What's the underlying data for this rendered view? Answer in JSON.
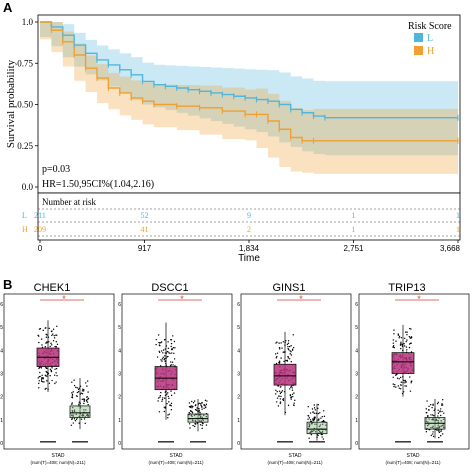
{
  "panels": {
    "a_label": "A",
    "b_label": "B"
  },
  "km": {
    "legend_title": "Risk Score",
    "legend": [
      {
        "name": "L",
        "color": "#4fb7db"
      },
      {
        "name": "H",
        "color": "#f0a030"
      }
    ],
    "ylabel": "Survival probability",
    "xlabel": "Time",
    "yticks": [
      "0.0",
      "0.25",
      "0.50",
      "0.75",
      "1.0"
    ],
    "xticks": [
      "0",
      "917",
      "1,834",
      "2,751",
      "3,668"
    ],
    "pvalue": "p=0.03",
    "hr": "HR=1.50,95CI%(1.04,2.16)",
    "risk_table_title": "Number at risk",
    "risk_rows": [
      {
        "label": "L",
        "values": [
          "211",
          "52",
          "9",
          "1",
          "1"
        ]
      },
      {
        "label": "H",
        "values": [
          "209",
          "41",
          "2",
          "1",
          "1"
        ]
      }
    ]
  },
  "chart_data": [
    {
      "type": "line",
      "title": "",
      "xlabel": "Time",
      "ylabel": "Survival probability",
      "xlim": [
        0,
        3668
      ],
      "ylim": [
        0,
        1
      ],
      "grid": false,
      "legend": "top-right",
      "series": [
        {
          "name": "L",
          "color": "#4fb7db",
          "x": [
            0,
            100,
            200,
            300,
            400,
            500,
            600,
            700,
            800,
            900,
            1000,
            1100,
            1200,
            1300,
            1400,
            1500,
            1600,
            1700,
            1800,
            1900,
            2000,
            2100,
            2200,
            2300,
            2400,
            2500,
            3668
          ],
          "y": [
            1.0,
            0.97,
            0.92,
            0.86,
            0.81,
            0.77,
            0.74,
            0.71,
            0.68,
            0.64,
            0.62,
            0.61,
            0.6,
            0.59,
            0.58,
            0.57,
            0.56,
            0.55,
            0.54,
            0.53,
            0.52,
            0.5,
            0.47,
            0.45,
            0.43,
            0.42,
            0.42
          ]
        },
        {
          "name": "H",
          "color": "#f0a030",
          "x": [
            0,
            100,
            200,
            300,
            400,
            500,
            600,
            700,
            800,
            900,
            1000,
            1200,
            1400,
            1600,
            1800,
            1900,
            2000,
            2100,
            2200,
            2300,
            2400,
            3668
          ],
          "y": [
            1.0,
            0.95,
            0.88,
            0.8,
            0.72,
            0.66,
            0.6,
            0.57,
            0.54,
            0.52,
            0.5,
            0.49,
            0.48,
            0.46,
            0.44,
            0.44,
            0.4,
            0.35,
            0.3,
            0.28,
            0.28,
            0.28
          ]
        }
      ]
    },
    {
      "type": "box",
      "title": "CHEK1",
      "significance": "*",
      "xlabel": "STAD",
      "sublabel": "(num(T)=408; num(N)=211)",
      "ylim": [
        0,
        6
      ],
      "yticks": [
        "0",
        "1",
        "2",
        "3",
        "4",
        "5",
        "6"
      ],
      "series": [
        {
          "name": "T",
          "color": "#b5307a",
          "q1": 3.3,
          "median": 3.7,
          "q3": 4.1,
          "min": 2.2,
          "max": 5.3
        },
        {
          "name": "N",
          "color": "#8bbf8a",
          "q1": 1.1,
          "median": 1.3,
          "q3": 1.6,
          "min": 0.6,
          "max": 2.8
        }
      ]
    },
    {
      "type": "box",
      "title": "DSCC1",
      "significance": "*",
      "xlabel": "STAD",
      "sublabel": "(num(T)=408; num(N)=211)",
      "ylim": [
        0,
        6
      ],
      "yticks": [
        "0",
        "1",
        "2",
        "3",
        "4",
        "5",
        "6"
      ],
      "series": [
        {
          "name": "T",
          "color": "#b5307a",
          "q1": 2.3,
          "median": 2.8,
          "q3": 3.3,
          "min": 1.0,
          "max": 5.2
        },
        {
          "name": "N",
          "color": "#8bbf8a",
          "q1": 0.9,
          "median": 1.05,
          "q3": 1.25,
          "min": 0.5,
          "max": 1.9
        }
      ]
    },
    {
      "type": "box",
      "title": "GINS1",
      "significance": "*",
      "xlabel": "STAD",
      "sublabel": "(num(T)=408; num(N)=211)",
      "ylim": [
        0,
        6
      ],
      "yticks": [
        "0",
        "1",
        "2",
        "3",
        "4",
        "5",
        "6"
      ],
      "series": [
        {
          "name": "T",
          "color": "#b5307a",
          "q1": 2.5,
          "median": 2.9,
          "q3": 3.4,
          "min": 1.2,
          "max": 4.8
        },
        {
          "name": "N",
          "color": "#8bbf8a",
          "q1": 0.4,
          "median": 0.6,
          "q3": 0.9,
          "min": 0.1,
          "max": 1.7
        }
      ]
    },
    {
      "type": "box",
      "title": "TRIP13",
      "significance": "*",
      "xlabel": "STAD",
      "sublabel": "(num(T)=408; num(N)=211)",
      "ylim": [
        0,
        6
      ],
      "yticks": [
        "0",
        "1",
        "2",
        "3",
        "4",
        "5",
        "6"
      ],
      "series": [
        {
          "name": "T",
          "color": "#b5307a",
          "q1": 3.0,
          "median": 3.5,
          "q3": 3.9,
          "min": 2.0,
          "max": 5.1
        },
        {
          "name": "N",
          "color": "#8bbf8a",
          "q1": 0.6,
          "median": 0.85,
          "q3": 1.1,
          "min": 0.2,
          "max": 1.9
        }
      ]
    }
  ]
}
